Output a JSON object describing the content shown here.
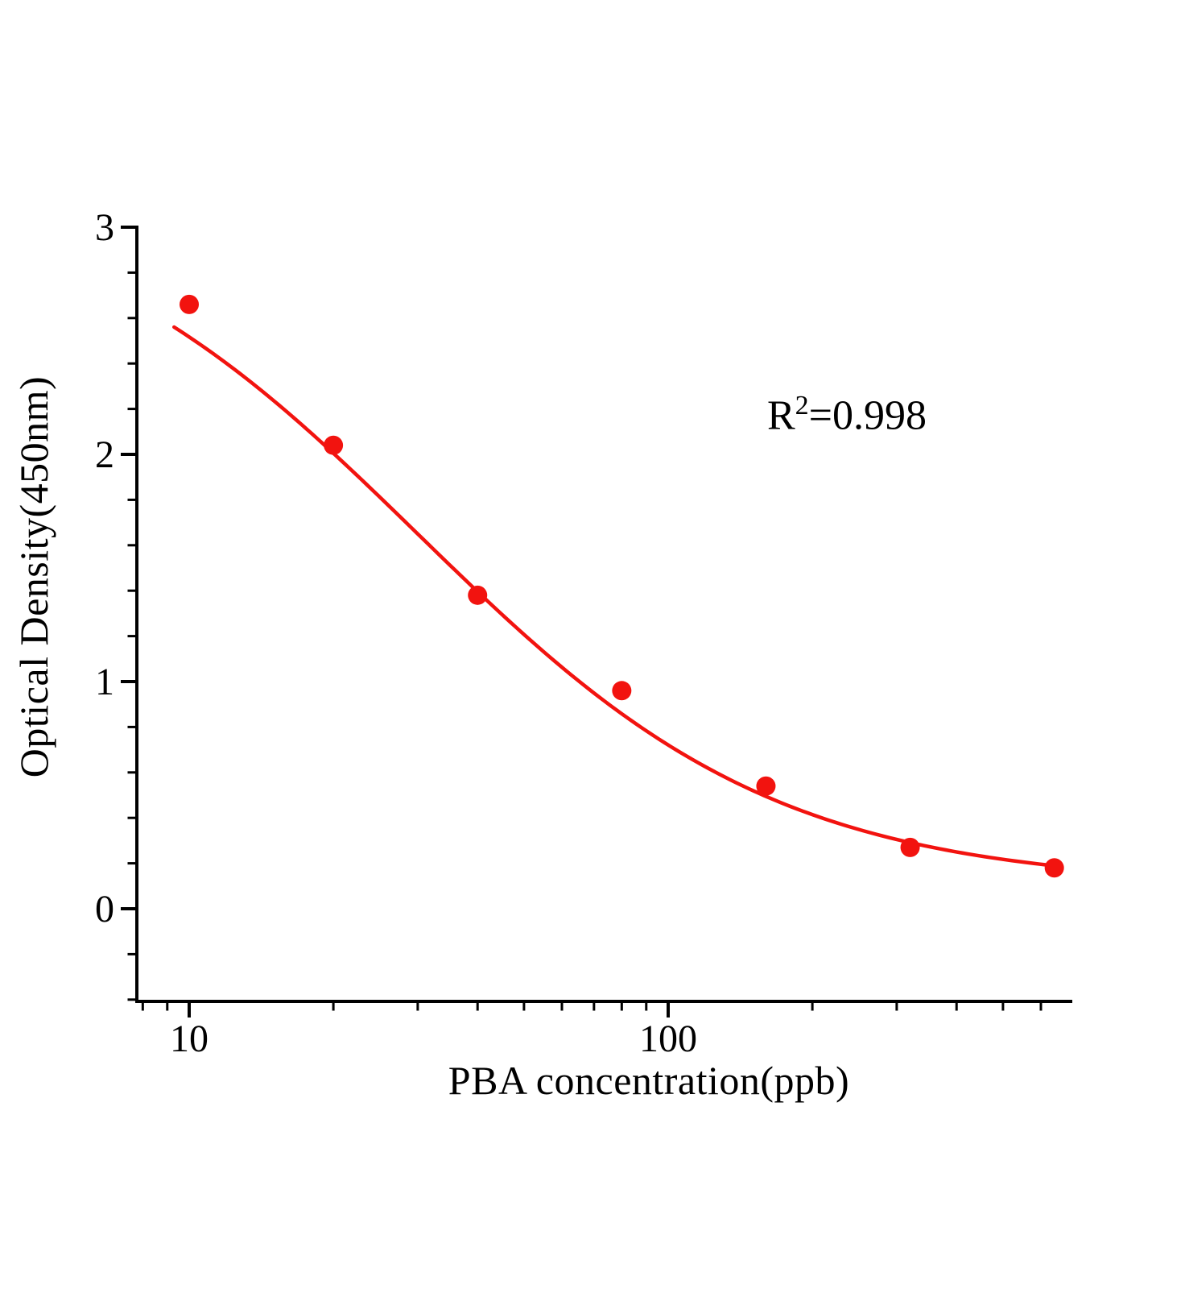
{
  "chart_data": {
    "type": "scatter",
    "title": "",
    "xlabel": "PBA concentration(ppb)",
    "ylabel": "Optical Density(450nm)",
    "annotation": {
      "prefix": "R",
      "sup": "2",
      "rest": "=0.998"
    },
    "x_scale": "log",
    "xlim": [
      7.8,
      695
    ],
    "ylim": [
      -0.41,
      3
    ],
    "x": [
      10,
      20,
      40,
      80,
      160,
      320,
      640
    ],
    "y": [
      2.66,
      2.04,
      1.38,
      0.96,
      0.54,
      0.27,
      0.18
    ],
    "x_major_ticks": [
      10,
      100
    ],
    "x_major_tick_labels": [
      "10",
      "100"
    ],
    "x_minor_ticks": [
      8,
      9,
      20,
      30,
      40,
      50,
      60,
      70,
      80,
      90,
      200,
      300,
      400,
      500,
      600,
      700
    ],
    "y_major_ticks": [
      0,
      1,
      2,
      3
    ],
    "y_major_tick_labels": [
      "0",
      "1",
      "2",
      "3"
    ],
    "y_minor_step": 0.2,
    "fit": {
      "type": "4PL",
      "a": 3.2,
      "b": 1.15,
      "c": 30,
      "d": 0.1,
      "x_start": 9.3,
      "x_end": 645
    },
    "colors": {
      "point": "#f2130f",
      "line": "#f2130f",
      "axis": "#000000"
    },
    "legend": "none",
    "grid": "off"
  }
}
